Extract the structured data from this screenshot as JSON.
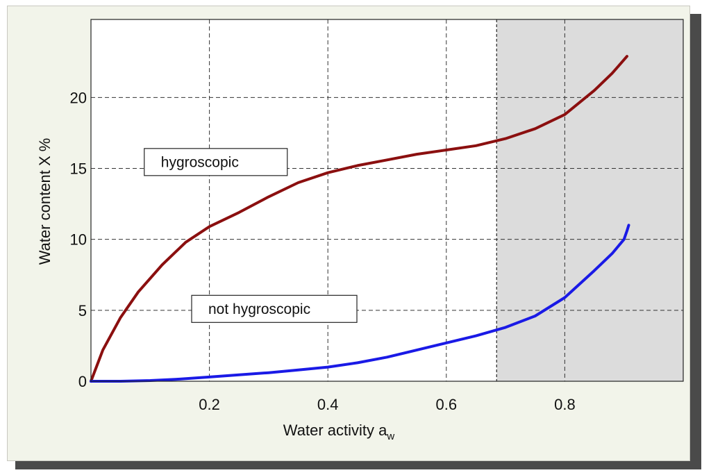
{
  "chart_data": {
    "type": "line",
    "xlabel": "Water activity a",
    "xlabel_sub": "w",
    "ylabel": "Water content  X  %",
    "xlim": [
      0,
      1.0
    ],
    "ylim": [
      0,
      25.5
    ],
    "x_ticks": [
      0.2,
      0.4,
      0.6,
      0.8
    ],
    "x_tick_labels": [
      "0.2",
      "0.4",
      "0.6",
      "0.8"
    ],
    "y_ticks": [
      0,
      5,
      10,
      15,
      20
    ],
    "y_tick_labels": [
      "0",
      "5",
      "10",
      "15",
      "20"
    ],
    "grid": true,
    "shaded_region": {
      "x_from": 0.685,
      "x_to": 1.0,
      "color": "#dcdcdc"
    },
    "series": [
      {
        "name": "hygroscopic",
        "color": "#8b0f0f",
        "x": [
          0.0,
          0.02,
          0.05,
          0.08,
          0.12,
          0.16,
          0.2,
          0.25,
          0.3,
          0.35,
          0.4,
          0.45,
          0.5,
          0.55,
          0.6,
          0.65,
          0.7,
          0.75,
          0.8,
          0.85,
          0.88,
          0.905
        ],
        "y": [
          0.0,
          2.2,
          4.5,
          6.3,
          8.2,
          9.8,
          10.9,
          11.9,
          13.0,
          14.0,
          14.7,
          15.2,
          15.6,
          16.0,
          16.3,
          16.6,
          17.1,
          17.8,
          18.8,
          20.5,
          21.7,
          22.9
        ]
      },
      {
        "name": "not hygroscopic",
        "color": "#1a1ae6",
        "x": [
          0.0,
          0.05,
          0.1,
          0.15,
          0.2,
          0.25,
          0.3,
          0.35,
          0.4,
          0.45,
          0.5,
          0.55,
          0.6,
          0.65,
          0.7,
          0.75,
          0.8,
          0.85,
          0.88,
          0.9,
          0.905,
          0.908
        ],
        "y": [
          0.0,
          0.0,
          0.05,
          0.15,
          0.3,
          0.45,
          0.6,
          0.8,
          1.0,
          1.3,
          1.7,
          2.2,
          2.7,
          3.2,
          3.8,
          4.6,
          5.9,
          7.8,
          9.0,
          10.0,
          10.6,
          11.0
        ]
      }
    ],
    "annotations": [
      {
        "text": "hygroscopic",
        "x": 0.09,
        "y": 15.45
      },
      {
        "text": "not hygroscopic",
        "x": 0.17,
        "y": 5.1
      }
    ]
  }
}
